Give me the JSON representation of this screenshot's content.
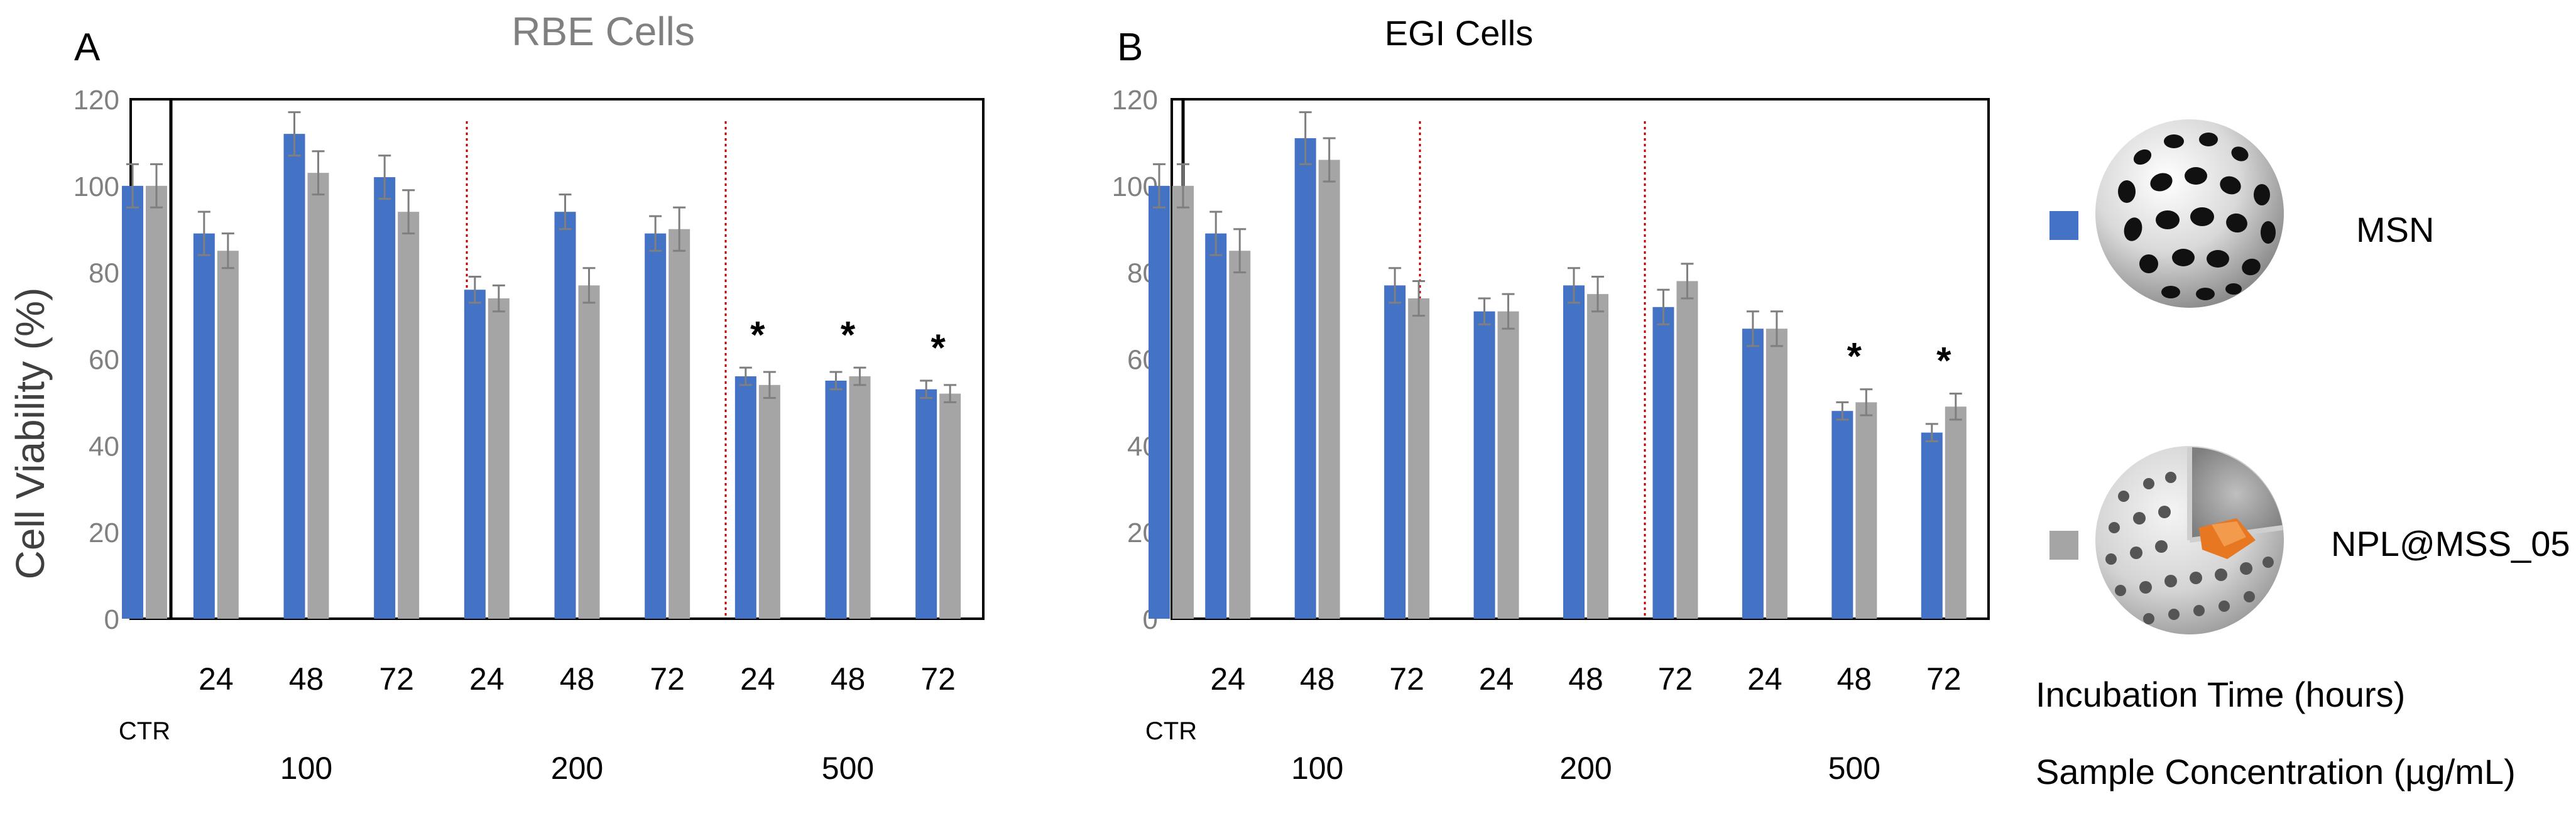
{
  "figure": {
    "ylabel": "Cell Viability (%)",
    "x_row_labels": {
      "time": "Incubation Time (hours)",
      "conc": "Sample Concentration (µg/mL)"
    }
  },
  "legend": {
    "items": [
      {
        "name": "MSN",
        "color": "#4472c4",
        "icon": "porous-sphere-icon"
      },
      {
        "name": "NPL@MSS_05",
        "color": "#a5a5a5",
        "icon": "cutaway-sphere-icon"
      }
    ]
  },
  "chart_data": [
    {
      "type": "bar",
      "panel": "A",
      "title": "RBE  Cells",
      "ylabel": "Cell Viability (%)",
      "ylim": [
        0,
        120
      ],
      "yticks": [
        "0",
        "20",
        "40",
        "60",
        "80",
        "100",
        "120"
      ],
      "categories": [
        "CTR",
        "24",
        "48",
        "72",
        "24",
        "48",
        "72",
        "24",
        "48",
        "72"
      ],
      "groups": [
        {
          "label": "",
          "ctr": "CTR"
        },
        {
          "label": "100"
        },
        {
          "label": "200"
        },
        {
          "label": "500"
        }
      ],
      "series": [
        {
          "name": "MSN",
          "values": [
            100,
            89,
            112,
            102,
            76,
            94,
            89,
            56,
            55,
            53
          ],
          "errors": [
            5,
            5,
            5,
            5,
            3,
            4,
            4,
            2,
            2,
            2
          ]
        },
        {
          "name": "NPL@MSS_05",
          "values": [
            100,
            85,
            103,
            94,
            74,
            77,
            90,
            54,
            56,
            52
          ],
          "errors": [
            5,
            4,
            5,
            5,
            3,
            4,
            5,
            3,
            2,
            2
          ]
        }
      ],
      "significance": [
        "",
        "",
        "",
        "",
        "",
        "",
        "",
        "*",
        "*",
        "*"
      ]
    },
    {
      "type": "bar",
      "panel": "B",
      "title": "EGI Cells",
      "ylabel": "",
      "ylim": [
        0,
        120
      ],
      "yticks": [
        "0",
        "20",
        "40",
        "60",
        "80",
        "100",
        "120"
      ],
      "categories": [
        "CTR",
        "24",
        "48",
        "72",
        "24",
        "48",
        "72",
        "24",
        "48",
        "72"
      ],
      "groups": [
        {
          "label": "",
          "ctr": "CTR"
        },
        {
          "label": "100"
        },
        {
          "label": "200"
        },
        {
          "label": "500"
        }
      ],
      "series": [
        {
          "name": "MSN",
          "values": [
            100,
            89,
            111,
            77,
            71,
            77,
            72,
            67,
            48,
            43
          ],
          "errors": [
            5,
            5,
            6,
            4,
            3,
            4,
            4,
            4,
            2,
            2
          ]
        },
        {
          "name": "NPL@MSS_05",
          "values": [
            100,
            85,
            106,
            74,
            71,
            75,
            78,
            67,
            50,
            49
          ],
          "errors": [
            5,
            5,
            5,
            4,
            4,
            4,
            4,
            4,
            3,
            3
          ]
        }
      ],
      "significance": [
        "",
        "",
        "",
        "",
        "",
        "",
        "",
        "",
        "*",
        "*"
      ]
    }
  ]
}
